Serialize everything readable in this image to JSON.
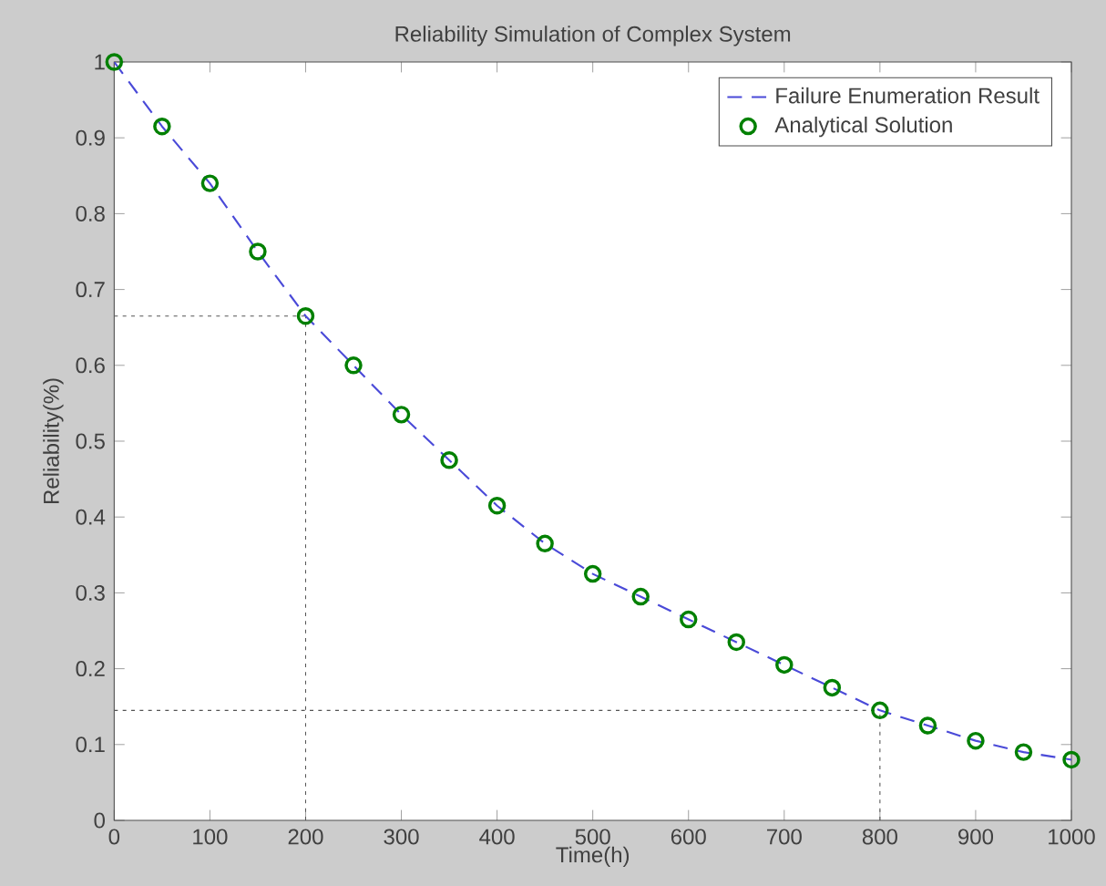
{
  "chart_data": {
    "type": "line",
    "title": "Reliability Simulation of Complex System",
    "xlabel": "Time(h)",
    "ylabel": "Reliability(%)",
    "x": [
      0,
      50,
      100,
      150,
      200,
      250,
      300,
      350,
      400,
      450,
      500,
      550,
      600,
      650,
      700,
      750,
      800,
      850,
      900,
      950,
      1000
    ],
    "series": [
      {
        "name": "Failure Enumeration Result",
        "line_style": "dashed",
        "marker": "none",
        "color": "#4a4ad8",
        "values": [
          1.0,
          0.915,
          0.84,
          0.75,
          0.665,
          0.6,
          0.535,
          0.475,
          0.415,
          0.365,
          0.325,
          0.295,
          0.265,
          0.235,
          0.205,
          0.175,
          0.145,
          0.125,
          0.105,
          0.09,
          0.08
        ]
      },
      {
        "name": "Analytical Solution",
        "type": "scatter",
        "marker": "circle",
        "color": "#008000",
        "values": [
          1.0,
          0.915,
          0.84,
          0.75,
          0.665,
          0.6,
          0.535,
          0.475,
          0.415,
          0.365,
          0.325,
          0.295,
          0.265,
          0.235,
          0.205,
          0.175,
          0.145,
          0.125,
          0.105,
          0.09,
          0.08
        ]
      }
    ],
    "xlim": [
      0,
      1000
    ],
    "ylim": [
      0,
      1
    ],
    "xticks": [
      0,
      100,
      200,
      300,
      400,
      500,
      600,
      700,
      800,
      900,
      1000
    ],
    "yticks": [
      0,
      0.1,
      0.2,
      0.3,
      0.4,
      0.5,
      0.6,
      0.7,
      0.8,
      0.9,
      1
    ],
    "ref_lines": [
      {
        "axis": "y",
        "value": 0.665,
        "color": "#555555",
        "line_style": "dotted"
      },
      {
        "axis": "x",
        "value": 200,
        "color": "#555555",
        "line_style": "dotted"
      },
      {
        "axis": "y",
        "value": 0.145,
        "color": "#555555",
        "line_style": "dotted"
      },
      {
        "axis": "x",
        "value": 800,
        "color": "#555555",
        "line_style": "dotted"
      }
    ],
    "legend": "top right",
    "grid": false
  }
}
